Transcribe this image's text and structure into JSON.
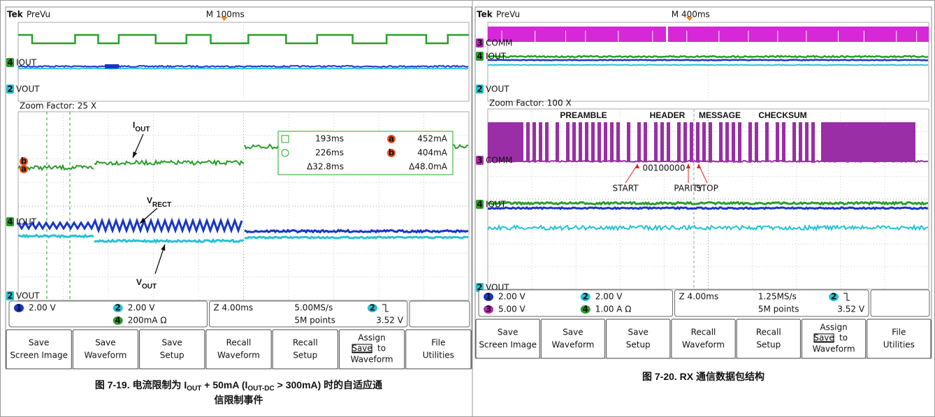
{
  "figures": [
    {
      "header": {
        "brand": "Tek",
        "mode": "PreVu",
        "timebase": "M 100ms"
      },
      "overview_labels": [
        {
          "channel": "4",
          "name": "IOUT"
        },
        {
          "channel": "2",
          "name": "VOUT"
        }
      ],
      "zoom_factor": "Zoom Factor: 25 X",
      "zoom_labels": [
        {
          "channel": "4",
          "name": "IOUT"
        },
        {
          "channel": "2",
          "name": "VOUT"
        }
      ],
      "cursor_markers": [
        "b",
        "a"
      ],
      "annotations": [
        {
          "main": "I",
          "sub": "OUT"
        },
        {
          "main": "V",
          "sub": "RECT"
        },
        {
          "main": "V",
          "sub": "OUT"
        }
      ],
      "cursor_readout": [
        [
          "193ms",
          "a",
          "452mA"
        ],
        [
          "226ms",
          "b",
          "404mA"
        ],
        [
          "Δ32.8ms",
          "Δ48.0mA"
        ]
      ],
      "channel_settings": [
        {
          "channel": "1",
          "scale": "2.00 V"
        },
        {
          "channel": "2",
          "scale": "2.00 V"
        },
        {
          "channel": "4",
          "scale": "200mA Ω"
        }
      ],
      "acquisition": [
        "Z 4.00ms",
        "5.00MS/s",
        "5M points"
      ],
      "trigger": {
        "channel": "2",
        "level": "3.52 V"
      },
      "buttons": [
        [
          "Save",
          "Screen Image"
        ],
        [
          "Save",
          "Waveform"
        ],
        [
          "Save",
          "Setup"
        ],
        [
          "Recall",
          "Waveform"
        ],
        [
          "Recall",
          "Setup"
        ],
        [
          "Assign",
          "Save",
          "to",
          "Waveform"
        ],
        [
          "File",
          "Utilities"
        ]
      ],
      "caption": [
        "图 7-19. 电流限制为 I",
        "OUT",
        " + 50mA (I",
        "OUT-DC",
        " > 300mA) 时的自适应通",
        "信限制事件"
      ]
    },
    {
      "header": {
        "brand": "Tek",
        "mode": "PreVu",
        "timebase": "M 400ms"
      },
      "overview_labels": [
        {
          "channel": "3",
          "name": "COMM"
        },
        {
          "channel": "4",
          "name": "IOUT"
        },
        {
          "channel": "2",
          "name": "VOUT"
        }
      ],
      "zoom_factor": "Zoom Factor: 100 X",
      "zoom_labels": [
        {
          "channel": "3",
          "name": "COMM"
        },
        {
          "channel": "4",
          "name": "IOUT"
        },
        {
          "channel": "2",
          "name": "VOUT"
        }
      ],
      "packet_fields": [
        "PREAMBLE",
        "HEADER",
        "MESSAGE",
        "CHECKSUM"
      ],
      "bits": "00100000",
      "bit_labels": [
        "START",
        "PARITY",
        "STOP"
      ],
      "channel_settings": [
        {
          "channel": "1",
          "scale": "2.00 V"
        },
        {
          "channel": "2",
          "scale": "2.00 V"
        },
        {
          "channel": "3",
          "scale": "5.00 V"
        },
        {
          "channel": "4",
          "scale": "1.00 A Ω"
        }
      ],
      "acquisition": [
        "Z 4.00ms",
        "1.25MS/s",
        "5M points"
      ],
      "trigger": {
        "channel": "2",
        "level": "3.52 V"
      },
      "buttons": [
        [
          "Save",
          "Screen Image"
        ],
        [
          "Save",
          "Waveform"
        ],
        [
          "Save",
          "Setup"
        ],
        [
          "Recall",
          "Waveform"
        ],
        [
          "Recall",
          "Setup"
        ],
        [
          "Assign",
          "Save",
          "to",
          "Waveform"
        ],
        [
          "File",
          "Utilities"
        ]
      ],
      "caption": [
        "图 7-20. RX 通信数据包结构"
      ]
    }
  ]
}
